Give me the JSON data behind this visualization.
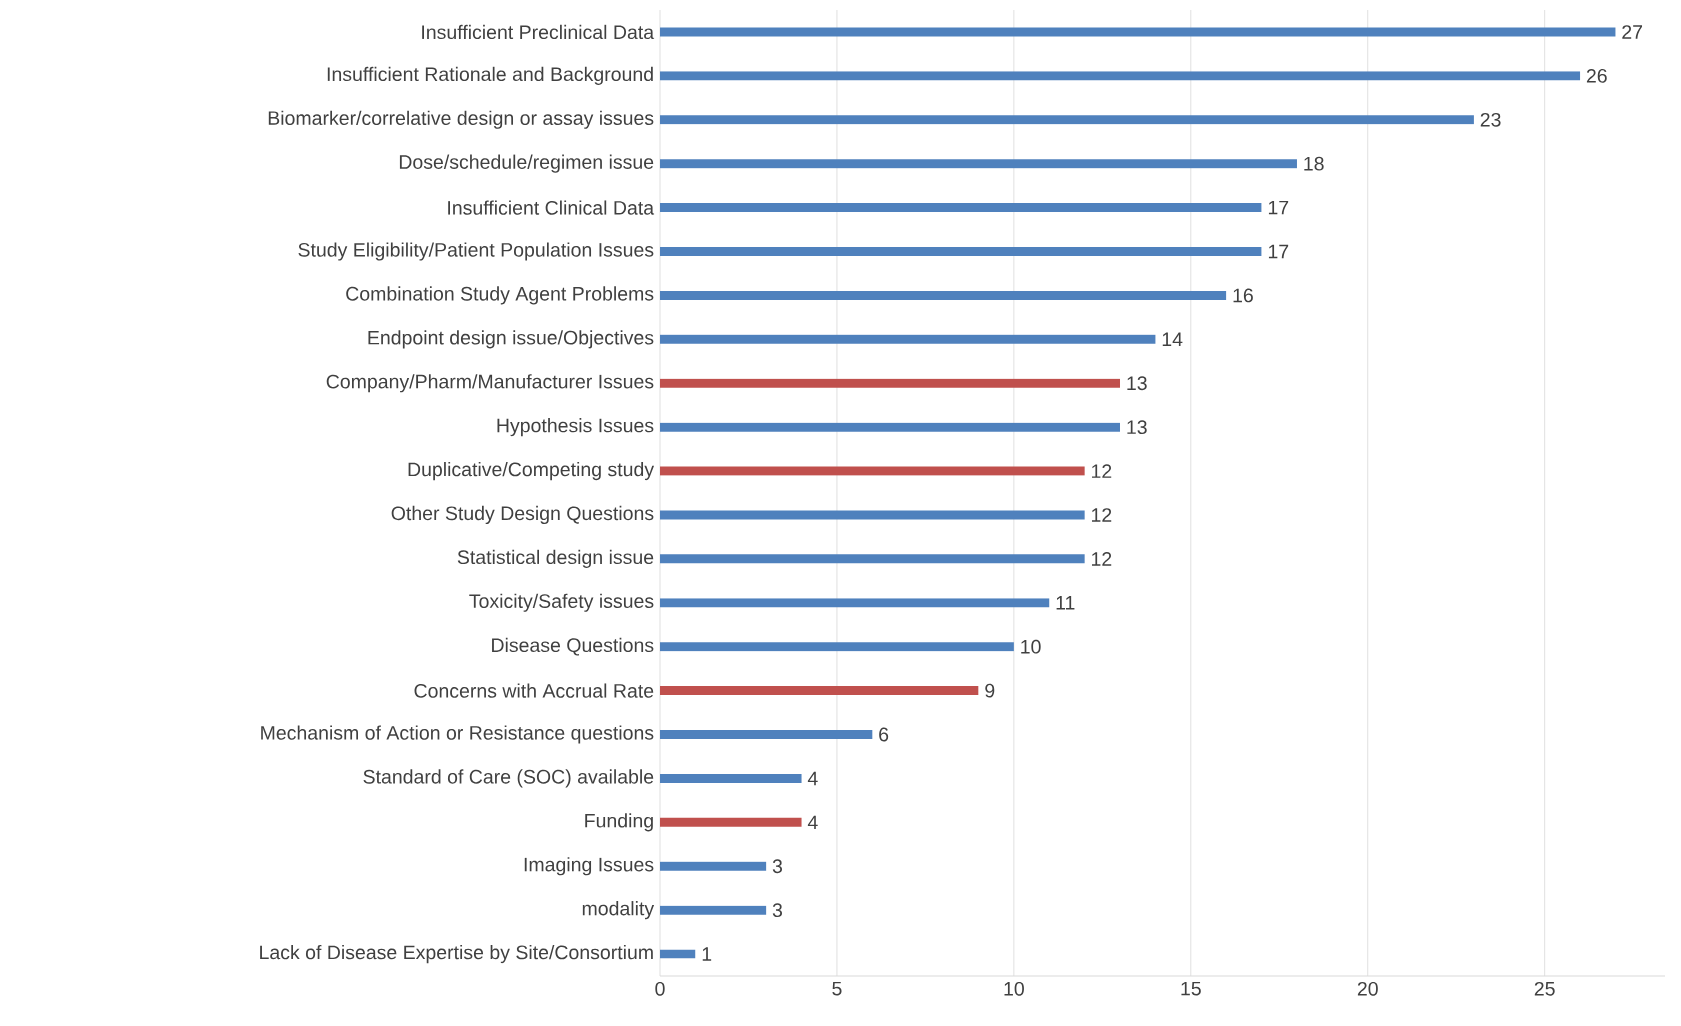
{
  "chart_data": {
    "type": "bar",
    "orientation": "horizontal",
    "categories": [
      "Insufficient Preclinical Data",
      "Insufficient Rationale and Background",
      "Biomarker/correlative design or assay issues",
      "Dose/schedule/regimen issue",
      "Insufficient Clinical Data",
      "Study Eligibility/Patient Population Issues",
      "Combination Study Agent Problems",
      "Endpoint design issue/Objectives",
      "Company/Pharm/Manufacturer Issues",
      "Hypothesis Issues",
      "Duplicative/Competing study",
      "Other Study Design Questions",
      "Statistical design issue",
      "Toxicity/Safety issues",
      "Disease Questions",
      "Concerns with Accrual Rate",
      "Mechanism of Action or Resistance questions",
      "Standard of Care (SOC) available",
      "Funding",
      "Imaging Issues",
      "modality",
      "Lack of Disease Expertise by Site/Consortium"
    ],
    "values": [
      27,
      26,
      23,
      18,
      17,
      17,
      16,
      14,
      13,
      13,
      12,
      12,
      12,
      11,
      10,
      9,
      6,
      4,
      4,
      3,
      3,
      1
    ],
    "colors": [
      "#4f81bd",
      "#4f81bd",
      "#4f81bd",
      "#4f81bd",
      "#4f81bd",
      "#4f81bd",
      "#4f81bd",
      "#4f81bd",
      "#c0504d",
      "#4f81bd",
      "#c0504d",
      "#4f81bd",
      "#4f81bd",
      "#4f81bd",
      "#4f81bd",
      "#c0504d",
      "#4f81bd",
      "#4f81bd",
      "#c0504d",
      "#4f81bd",
      "#4f81bd",
      "#4f81bd"
    ],
    "xlim": [
      0,
      28.4
    ],
    "xticks": [
      0,
      5,
      10,
      15,
      20,
      25
    ],
    "grid": "x",
    "data_labels": true
  }
}
